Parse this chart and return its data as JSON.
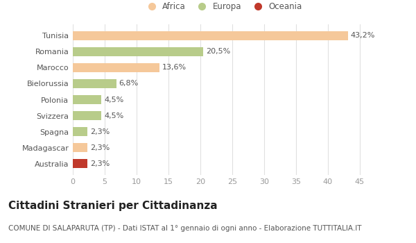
{
  "categories": [
    "Tunisia",
    "Romania",
    "Marocco",
    "Bielorussia",
    "Polonia",
    "Svizzera",
    "Spagna",
    "Madagascar",
    "Australia"
  ],
  "values": [
    43.2,
    20.5,
    13.6,
    6.8,
    4.5,
    4.5,
    2.3,
    2.3,
    2.3
  ],
  "labels": [
    "43,2%",
    "20,5%",
    "13,6%",
    "6,8%",
    "4,5%",
    "4,5%",
    "2,3%",
    "2,3%",
    "2,3%"
  ],
  "colors": [
    "#F5C89A",
    "#B8CC8A",
    "#F5C89A",
    "#B8CC8A",
    "#B8CC8A",
    "#B8CC8A",
    "#B8CC8A",
    "#F5C89A",
    "#C0392B"
  ],
  "legend": [
    {
      "label": "Africa",
      "color": "#F5C89A"
    },
    {
      "label": "Europa",
      "color": "#B8CC8A"
    },
    {
      "label": "Oceania",
      "color": "#C0392B"
    }
  ],
  "xlim": [
    0,
    47
  ],
  "xticks": [
    0,
    5,
    10,
    15,
    20,
    25,
    30,
    35,
    40,
    45
  ],
  "title": "Cittadini Stranieri per Cittadinanza",
  "subtitle": "COMUNE DI SALAPARUTA (TP) - Dati ISTAT al 1° gennaio di ogni anno - Elaborazione TUTTITALIA.IT",
  "bg_color": "#ffffff",
  "grid_color": "#e0e0e0",
  "bar_height": 0.55,
  "title_fontsize": 11,
  "subtitle_fontsize": 7.5,
  "label_fontsize": 8,
  "tick_fontsize": 8,
  "legend_fontsize": 8.5
}
